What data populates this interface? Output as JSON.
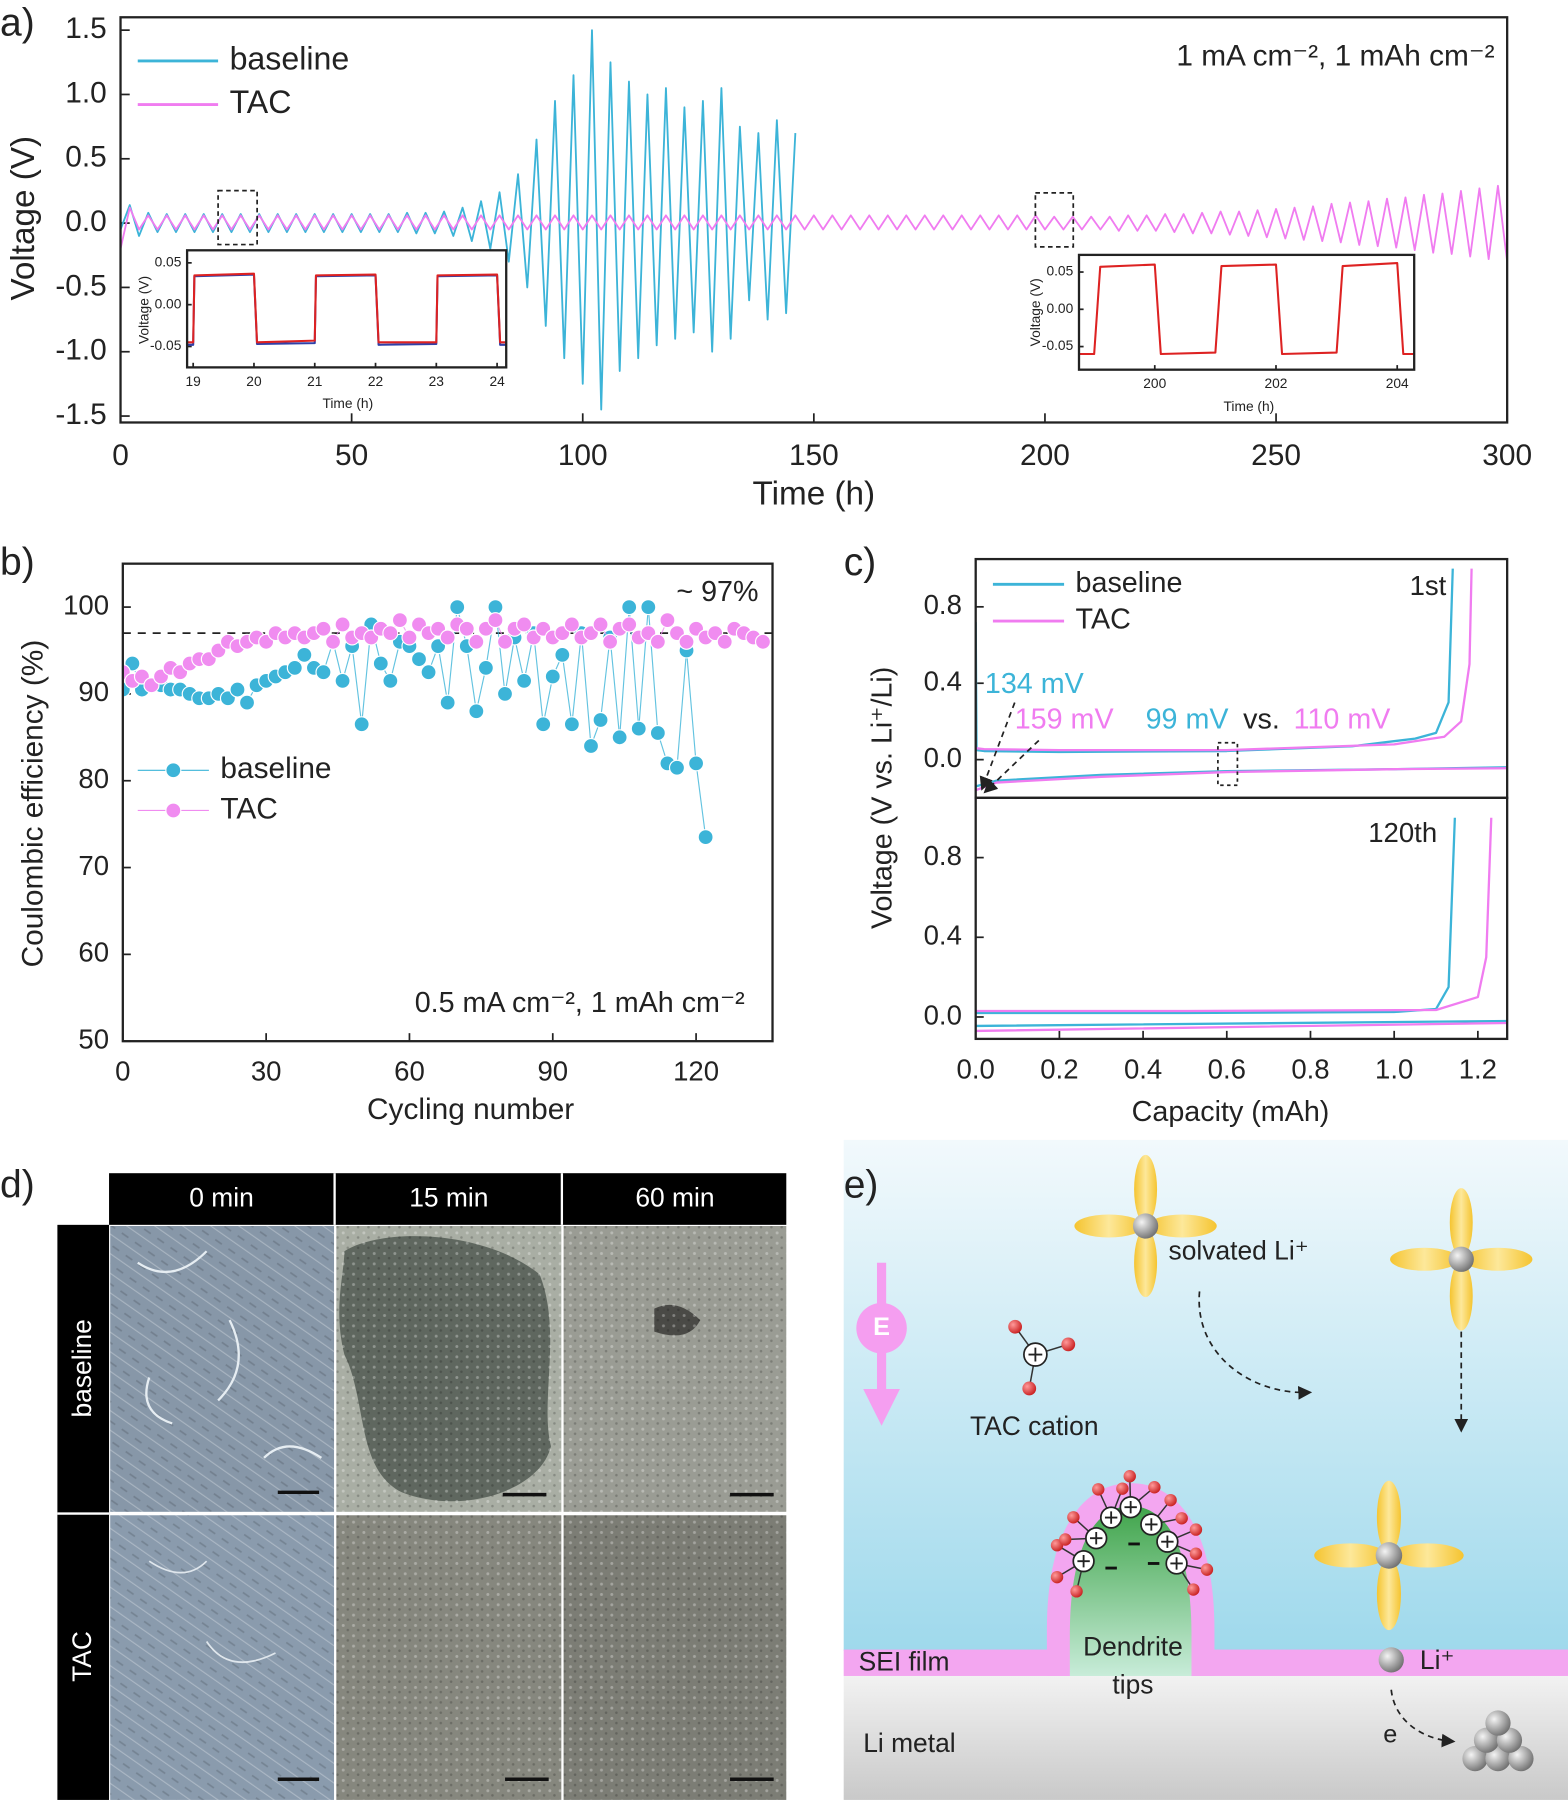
{
  "panel_labels": [
    "a)",
    "b)",
    "c)",
    "d)",
    "e)"
  ],
  "chart_data": [
    {
      "type": "line",
      "xlabel": "Time (h)",
      "ylabel": "Voltage (V)",
      "annotations": [
        "1 mA cm⁻², 1 mAh cm⁻²"
      ],
      "xlim": [
        0,
        300
      ],
      "ylim": [
        -1.55,
        1.6
      ],
      "xticks": [
        0,
        50,
        100,
        150,
        200,
        250,
        300
      ],
      "yticks": [
        -1.5,
        {
          "value": -1,
          "label": "-1.0"
        },
        -0.5,
        {
          "value": 0,
          "label": "0.0"
        },
        0.5,
        {
          "value": 1,
          "label": "1.0"
        },
        1.5
      ],
      "series": [
        {
          "name": "baseline",
          "color": "#3cb4d8",
          "x": [
            0,
            2,
            4,
            6,
            8,
            10,
            12,
            14,
            16,
            18,
            20,
            22,
            24,
            26,
            28,
            30,
            32,
            34,
            36,
            38,
            40,
            42,
            44,
            46,
            48,
            50,
            52,
            54,
            56,
            58,
            60,
            62,
            64,
            66,
            68,
            70,
            72,
            74,
            76,
            78,
            80,
            82,
            84,
            86,
            88,
            90,
            92,
            94,
            96,
            98,
            100,
            102,
            104,
            106,
            108,
            110,
            112,
            114,
            116,
            118,
            120,
            122,
            124,
            126,
            128,
            130,
            132,
            134,
            136,
            138,
            140,
            142,
            144,
            146
          ],
          "values": [
            -0.05,
            0.14,
            -0.1,
            0.08,
            -0.07,
            0.07,
            -0.07,
            0.07,
            -0.07,
            0.07,
            -0.07,
            0.07,
            -0.07,
            0.07,
            -0.07,
            0.07,
            -0.07,
            0.07,
            -0.07,
            0.07,
            -0.07,
            0.07,
            -0.07,
            0.07,
            -0.07,
            0.07,
            -0.07,
            0.07,
            -0.07,
            0.07,
            -0.07,
            0.08,
            -0.08,
            0.08,
            -0.08,
            0.09,
            -0.1,
            0.12,
            -0.14,
            0.17,
            -0.2,
            0.24,
            -0.3,
            0.38,
            -0.5,
            0.65,
            -0.8,
            0.95,
            -1.05,
            1.15,
            -1.25,
            1.5,
            -1.45,
            1.25,
            -1.15,
            1.1,
            -1.05,
            1.0,
            -0.95,
            1.05,
            -0.9,
            0.9,
            -0.85,
            0.95,
            -1.0,
            1.05,
            -0.9,
            0.75,
            -0.6,
            0.7,
            -0.75,
            0.8,
            -0.7,
            0.7
          ]
        },
        {
          "name": "TAC",
          "color": "#f07cf0",
          "x": [
            0,
            2,
            4,
            6,
            8,
            10,
            12,
            14,
            16,
            18,
            20,
            22,
            24,
            26,
            28,
            30,
            32,
            34,
            36,
            38,
            40,
            42,
            44,
            46,
            48,
            50,
            52,
            54,
            56,
            58,
            60,
            62,
            64,
            66,
            68,
            70,
            72,
            74,
            76,
            78,
            80,
            82,
            84,
            86,
            88,
            90,
            92,
            94,
            96,
            98,
            100,
            102,
            104,
            106,
            108,
            110,
            112,
            114,
            116,
            118,
            120,
            122,
            124,
            126,
            128,
            130,
            132,
            134,
            136,
            138,
            140,
            142,
            144,
            146,
            148,
            150,
            152,
            154,
            156,
            158,
            160,
            162,
            164,
            166,
            168,
            170,
            172,
            174,
            176,
            178,
            180,
            182,
            184,
            186,
            188,
            190,
            192,
            194,
            196,
            198,
            200,
            202,
            204,
            206,
            208,
            210,
            212,
            214,
            216,
            218,
            220,
            222,
            224,
            226,
            228,
            230,
            232,
            234,
            236,
            238,
            240,
            242,
            244,
            246,
            248,
            250,
            252,
            254,
            256,
            258,
            260,
            262,
            264,
            266,
            268,
            270,
            272,
            274,
            276,
            278,
            280,
            282,
            284,
            286,
            288,
            290,
            292,
            294,
            296,
            298,
            300
          ],
          "values": [
            -0.2,
            0.12,
            -0.05,
            0.06,
            -0.05,
            0.06,
            -0.05,
            0.06,
            -0.05,
            0.06,
            -0.05,
            0.06,
            -0.05,
            0.06,
            -0.05,
            0.06,
            -0.05,
            0.06,
            -0.05,
            0.06,
            -0.05,
            0.06,
            -0.05,
            0.06,
            -0.05,
            0.06,
            -0.05,
            0.06,
            -0.05,
            0.06,
            -0.05,
            0.06,
            -0.05,
            0.06,
            -0.05,
            0.06,
            -0.05,
            0.06,
            -0.05,
            0.06,
            -0.05,
            0.06,
            -0.05,
            0.06,
            -0.05,
            0.06,
            -0.05,
            0.06,
            -0.05,
            0.06,
            -0.05,
            0.06,
            -0.05,
            0.06,
            -0.05,
            0.06,
            -0.05,
            0.06,
            -0.05,
            0.06,
            -0.05,
            0.06,
            -0.05,
            0.06,
            -0.05,
            0.06,
            -0.05,
            0.06,
            -0.05,
            0.06,
            -0.05,
            0.06,
            -0.05,
            0.06,
            -0.05,
            0.06,
            -0.05,
            0.06,
            -0.05,
            0.06,
            -0.05,
            0.06,
            -0.05,
            0.06,
            -0.05,
            0.06,
            -0.05,
            0.06,
            -0.05,
            0.06,
            -0.05,
            0.06,
            -0.05,
            0.06,
            -0.05,
            0.06,
            -0.05,
            0.06,
            -0.05,
            0.06,
            -0.05,
            0.05,
            -0.05,
            0.05,
            -0.05,
            0.05,
            -0.05,
            0.05,
            -0.06,
            0.06,
            -0.06,
            0.06,
            -0.06,
            0.07,
            -0.07,
            0.07,
            -0.08,
            0.08,
            -0.08,
            0.09,
            -0.09,
            0.09,
            -0.1,
            0.1,
            -0.11,
            0.11,
            -0.12,
            0.12,
            -0.13,
            0.13,
            -0.14,
            0.15,
            -0.15,
            0.16,
            -0.17,
            0.17,
            -0.18,
            0.19,
            -0.19,
            0.2,
            -0.21,
            0.22,
            -0.23,
            0.23,
            -0.24,
            0.25,
            -0.26,
            0.27,
            -0.28,
            0.29,
            -0.3
          ]
        }
      ],
      "legend": "upper left"
    },
    {
      "type": "line",
      "xlabel": "Time (h)",
      "ylabel": "Voltage (V)",
      "xlim": [
        18.9,
        24.15
      ],
      "ylim": [
        -0.075,
        0.065
      ],
      "xticks": [
        19,
        20,
        21,
        22,
        23,
        24
      ],
      "yticks": [
        -0.05,
        {
          "value": 0,
          "label": "0.00"
        },
        0.05
      ],
      "series": [
        {
          "color": "#3040a8",
          "x": [
            18.9,
            19.0,
            19.02,
            20.0,
            20.05,
            21.0,
            21.02,
            22.0,
            22.05,
            23.0,
            23.02,
            24.0,
            24.05,
            24.15
          ],
          "values": [
            -0.048,
            -0.048,
            0.034,
            0.036,
            -0.047,
            -0.046,
            0.034,
            0.035,
            -0.048,
            -0.047,
            0.034,
            0.035,
            -0.048,
            -0.048
          ]
        },
        {
          "color": "#dd2222",
          "x": [
            18.9,
            19.0,
            19.02,
            20.0,
            20.05,
            21.0,
            21.02,
            22.0,
            22.05,
            23.0,
            23.02,
            24.0,
            24.05,
            24.15
          ],
          "values": [
            -0.045,
            -0.045,
            0.035,
            0.037,
            -0.045,
            -0.043,
            0.035,
            0.036,
            -0.045,
            -0.045,
            0.035,
            0.036,
            -0.045,
            -0.045
          ]
        }
      ]
    },
    {
      "type": "line",
      "xlabel": "Time (h)",
      "ylabel": "Voltage (V)",
      "xlim": [
        198.75,
        204.28
      ],
      "ylim": [
        -0.081,
        0.073
      ],
      "xticks": [
        200,
        202,
        204
      ],
      "yticks": [
        -0.05,
        {
          "value": 0,
          "label": "0.00"
        },
        0.05
      ],
      "series": [
        {
          "color": "#dd2222",
          "x": [
            198.75,
            199.0,
            199.1,
            200.0,
            200.1,
            201.0,
            201.1,
            202.0,
            202.1,
            203.0,
            203.1,
            204.0,
            204.1,
            204.28
          ],
          "values": [
            -0.06,
            -0.06,
            0.057,
            0.06,
            -0.06,
            -0.058,
            0.058,
            0.06,
            -0.06,
            -0.058,
            0.058,
            0.062,
            -0.06,
            -0.06
          ]
        }
      ]
    },
    {
      "type": "scatter",
      "xlabel": "Cycling number",
      "ylabel": "Coulombic efficiency (%)",
      "annotations": [
        "~ 97%",
        "0.5 mA cm⁻², 1 mAh cm⁻²"
      ],
      "reference_line": 97,
      "xlim": [
        0,
        136
      ],
      "ylim": [
        50,
        105
      ],
      "xticks": [
        0,
        30,
        60,
        90,
        120
      ],
      "yticks": [
        50,
        60,
        70,
        80,
        90,
        100
      ],
      "legend": "lower left",
      "x": [
        0,
        2,
        4,
        6,
        8,
        10,
        12,
        14,
        16,
        18,
        20,
        22,
        24,
        26,
        28,
        30,
        32,
        34,
        36,
        38,
        40,
        42,
        44,
        46,
        48,
        50,
        52,
        54,
        56,
        58,
        60,
        62,
        64,
        66,
        68,
        70,
        72,
        74,
        76,
        78,
        80,
        82,
        84,
        86,
        88,
        90,
        92,
        94,
        96,
        98,
        100,
        102,
        104,
        106,
        108,
        110,
        112,
        114,
        116,
        118,
        120,
        122,
        124,
        126,
        128,
        130,
        132,
        134
      ],
      "series": [
        {
          "name": "baseline",
          "color": "#3cb4d8",
          "values": [
            90.5,
            93.5,
            90.5,
            91,
            91,
            90.5,
            90.5,
            90,
            89.5,
            89.5,
            90,
            89.5,
            90.5,
            89,
            91,
            91.5,
            92,
            92.5,
            93,
            94.5,
            93,
            92.5,
            96,
            91.5,
            95.5,
            86.5,
            98,
            93.5,
            91.5,
            96,
            95.5,
            94,
            92.5,
            95.5,
            89,
            100,
            95.5,
            88,
            93,
            100,
            90,
            96.5,
            91.5,
            97,
            86.5,
            92,
            94.5,
            86.5,
            97,
            84,
            87,
            96.5,
            85,
            100,
            86,
            100,
            85.5,
            82,
            81.5,
            95,
            82,
            73.5,
            null,
            null,
            null,
            null,
            null,
            null
          ]
        },
        {
          "name": "TAC",
          "color": "#f08cf0",
          "values": [
            92.5,
            91.5,
            92,
            91,
            92,
            93,
            92.5,
            93.5,
            94,
            94,
            95,
            96,
            95.5,
            96,
            96.5,
            96,
            97,
            96.5,
            97,
            96.5,
            97,
            97.5,
            96,
            98,
            96.5,
            97,
            96.5,
            97.5,
            97,
            98.5,
            96.5,
            98,
            97,
            97.5,
            96.5,
            98,
            97.5,
            96,
            97.5,
            98.5,
            96,
            97.5,
            98,
            96.5,
            97.5,
            96.5,
            97,
            98,
            96.5,
            97,
            98,
            96,
            97.5,
            98,
            96.5,
            97,
            96,
            98.5,
            97,
            96,
            97.5,
            96.5,
            97,
            96,
            97.5,
            97,
            96.5,
            96
          ]
        }
      ]
    },
    {
      "type": "line",
      "ylabel": "Voltage (V vs. Li⁺/Li)",
      "xlim": [
        0,
        1.27
      ],
      "ylim": [
        -0.2,
        1.05
      ],
      "yticks": [
        {
          "value": 0,
          "label": "0.0"
        },
        0.4,
        0.8
      ],
      "legend": "upper left",
      "annotations": [
        {
          "text": "1st",
          "color": "#222222"
        },
        {
          "text": "134 mV",
          "color": "#3cb4d8"
        },
        {
          "text": "159 mV",
          "color": "#f07cf0"
        },
        {
          "text": "99 mV",
          "color": "#3cb4d8"
        },
        {
          "text": "vs.",
          "color": "#222222"
        },
        {
          "text": "110 mV",
          "color": "#f07cf0"
        }
      ],
      "series": [
        {
          "name": "baseline",
          "color": "#3cb4d8",
          "x": [
            0,
            0.002,
            0.02,
            0.2,
            0.6,
            0.9,
            1.05,
            1.1,
            1.13,
            1.14,
            null,
            0,
            0.05,
            0.3,
            0.6,
            1.0,
            1.27
          ],
          "values": [
            0.72,
            0.05,
            0.045,
            0.04,
            0.045,
            0.07,
            0.11,
            0.14,
            0.3,
            1.0,
            null,
            -0.14,
            -0.11,
            -0.08,
            -0.06,
            -0.05,
            -0.04
          ]
        },
        {
          "name": "TAC",
          "color": "#f07cf0",
          "x": [
            0,
            0.02,
            0.2,
            0.6,
            1.0,
            1.12,
            1.16,
            1.18,
            1.185,
            null,
            0,
            0.05,
            0.3,
            0.6,
            1.0,
            1.27
          ],
          "values": [
            0.06,
            0.055,
            0.05,
            0.05,
            0.08,
            0.12,
            0.2,
            0.5,
            1.0,
            null,
            -0.16,
            -0.12,
            -0.09,
            -0.065,
            -0.05,
            -0.045
          ]
        }
      ]
    },
    {
      "type": "line",
      "xlabel": "Capacity (mAh)",
      "xlim": [
        0,
        1.27
      ],
      "ylim": [
        -0.11,
        1.1
      ],
      "xticks": [
        {
          "value": 0,
          "label": "0.0"
        },
        0.2,
        0.4,
        0.6,
        0.8,
        {
          "value": 1,
          "label": "1.0"
        },
        1.2
      ],
      "yticks": [
        {
          "value": 0,
          "label": "0.0"
        },
        0.4,
        0.8
      ],
      "annotations": [
        "120th"
      ],
      "series": [
        {
          "color": "#3cb4d8",
          "x": [
            0,
            0.5,
            1.0,
            1.1,
            1.13,
            1.145,
            null,
            0,
            1.27
          ],
          "values": [
            0.02,
            0.02,
            0.025,
            0.04,
            0.15,
            1.0,
            null,
            -0.045,
            -0.02
          ]
        },
        {
          "color": "#f07cf0",
          "x": [
            0,
            0.5,
            1.1,
            1.2,
            1.22,
            1.232,
            null,
            0,
            1.27
          ],
          "values": [
            0.03,
            0.03,
            0.035,
            0.1,
            0.3,
            1.0,
            null,
            -0.07,
            -0.03
          ]
        }
      ]
    }
  ],
  "micrographs": {
    "columns": [
      "0 min",
      "15 min",
      "60 min"
    ],
    "rows": [
      "baseline",
      "TAC"
    ]
  },
  "diagram": {
    "field_label": "E",
    "solvated_label": "solvated Li⁺",
    "cation_label": "TAC cation",
    "sei_label": "SEI film",
    "dendrite_label": [
      "Dendrite",
      "tips"
    ],
    "metal_label": "Li metal",
    "ion_label": "Li⁺",
    "electron_label": "e"
  }
}
